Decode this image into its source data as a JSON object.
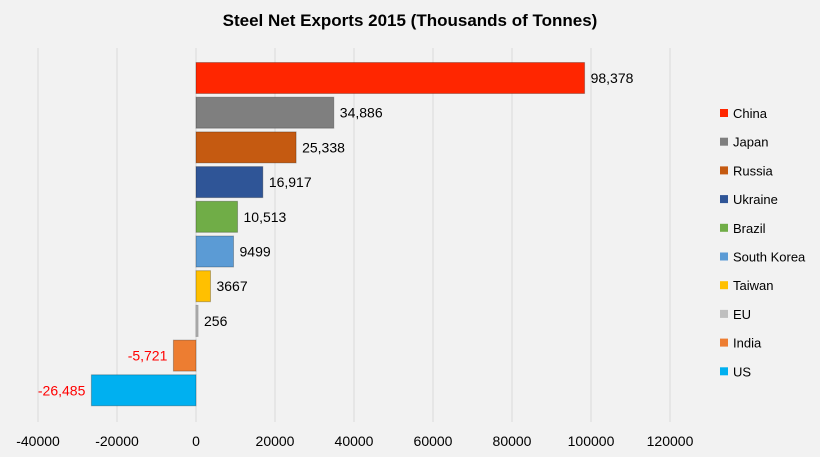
{
  "chart_data": {
    "type": "bar",
    "orientation": "horizontal",
    "title": "Steel Net Exports 2015 (Thousands of Tonnes)",
    "xlabel": "",
    "ylabel": "",
    "xlim": [
      -40000,
      120000
    ],
    "x_ticks": [
      "-40000",
      "-20000",
      "0",
      "20000",
      "40000",
      "60000",
      "80000",
      "100000",
      "120000"
    ],
    "grid": true,
    "legend_position": "right",
    "categories": [
      "China",
      "Japan",
      "Russia",
      "Ukraine",
      "Brazil",
      "South Korea",
      "Taiwan",
      "EU",
      "India",
      "US"
    ],
    "values": [
      98378,
      34886,
      25338,
      16917,
      10513,
      9499,
      3667,
      256,
      -5721,
      -26485
    ],
    "data_labels": [
      "98,378",
      "34,886",
      "25,338",
      "16,917",
      "10,513",
      "9499",
      "3667",
      "256",
      "-5,721",
      "-26,485"
    ],
    "colors": [
      "#ff2600",
      "#7f7f7f",
      "#c55a11",
      "#2f5597",
      "#70ad47",
      "#5b9bd5",
      "#ffc000",
      "#bfbfbf",
      "#ed7d31",
      "#00b0f0"
    ],
    "negative_label_color": "#ff0000",
    "positive_label_color": "#000000"
  }
}
